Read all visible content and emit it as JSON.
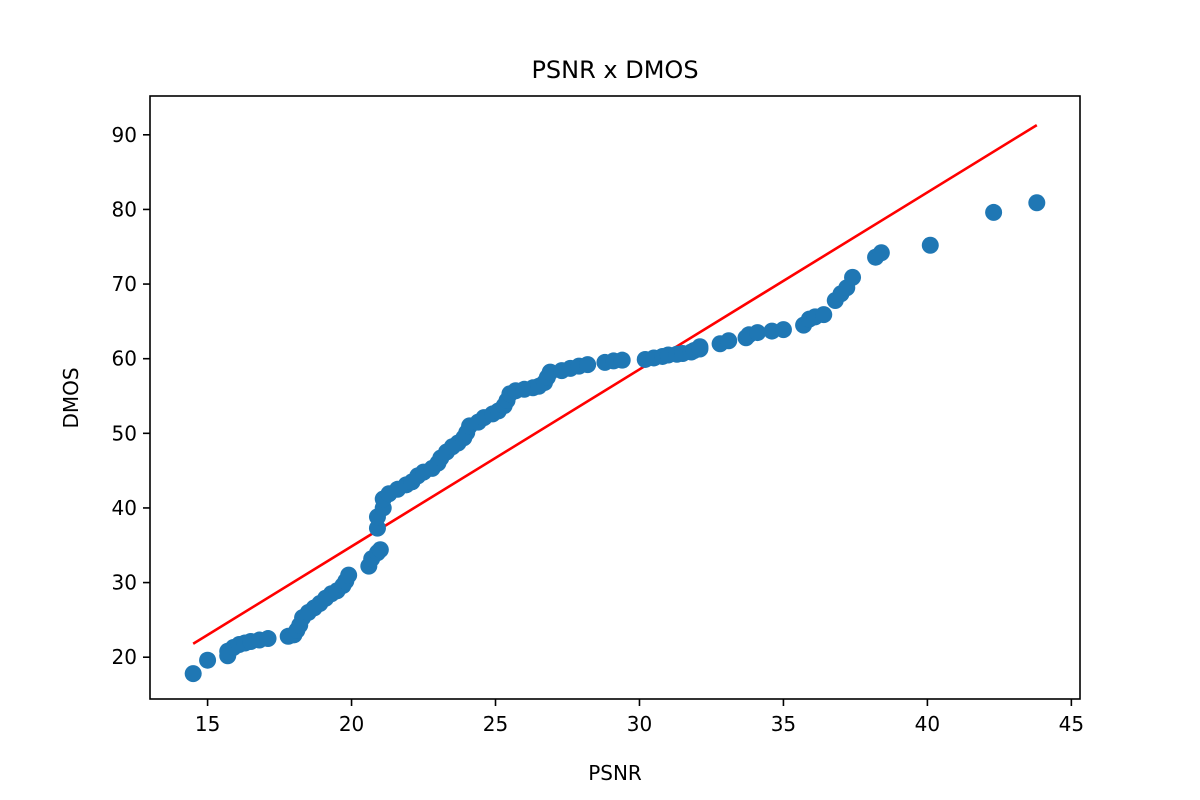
{
  "chart_data": {
    "type": "scatter",
    "title": "PSNR x DMOS",
    "xlabel": "PSNR",
    "ylabel": "DMOS",
    "xlim": [
      13.0,
      45.3
    ],
    "ylim": [
      14.4,
      95.2
    ],
    "xticks": [
      15,
      20,
      25,
      30,
      35,
      40,
      45
    ],
    "yticks": [
      20,
      30,
      40,
      50,
      60,
      70,
      80,
      90
    ],
    "grid": false,
    "series": [
      {
        "kind": "scatter",
        "color": "#1f77b4",
        "points": [
          [
            14.5,
            17.8
          ],
          [
            15.0,
            19.6
          ],
          [
            15.7,
            20.2
          ],
          [
            15.7,
            20.8
          ],
          [
            15.9,
            21.3
          ],
          [
            16.1,
            21.7
          ],
          [
            16.3,
            21.9
          ],
          [
            16.5,
            22.1
          ],
          [
            16.8,
            22.3
          ],
          [
            17.1,
            22.5
          ],
          [
            17.8,
            22.8
          ],
          [
            18.0,
            23.0
          ],
          [
            18.1,
            23.6
          ],
          [
            18.2,
            24.3
          ],
          [
            18.3,
            25.3
          ],
          [
            18.5,
            26.0
          ],
          [
            18.7,
            26.6
          ],
          [
            18.9,
            27.2
          ],
          [
            19.1,
            27.9
          ],
          [
            19.3,
            28.5
          ],
          [
            19.5,
            28.9
          ],
          [
            19.7,
            29.6
          ],
          [
            19.8,
            30.2
          ],
          [
            19.9,
            31.0
          ],
          [
            20.6,
            32.2
          ],
          [
            20.7,
            33.2
          ],
          [
            20.9,
            34.0
          ],
          [
            21.0,
            34.4
          ],
          [
            20.9,
            37.3
          ],
          [
            20.9,
            38.8
          ],
          [
            21.1,
            40.0
          ],
          [
            21.1,
            41.2
          ],
          [
            21.3,
            41.9
          ],
          [
            21.6,
            42.5
          ],
          [
            21.9,
            43.1
          ],
          [
            22.1,
            43.5
          ],
          [
            22.3,
            44.3
          ],
          [
            22.5,
            44.8
          ],
          [
            22.8,
            45.3
          ],
          [
            23.0,
            46.0
          ],
          [
            23.1,
            46.7
          ],
          [
            23.3,
            47.5
          ],
          [
            23.5,
            48.2
          ],
          [
            23.7,
            48.7
          ],
          [
            23.9,
            49.4
          ],
          [
            24.0,
            50.1
          ],
          [
            24.1,
            51.0
          ],
          [
            24.4,
            51.5
          ],
          [
            24.6,
            52.1
          ],
          [
            24.9,
            52.6
          ],
          [
            25.1,
            53.0
          ],
          [
            25.3,
            53.7
          ],
          [
            25.4,
            54.4
          ],
          [
            25.5,
            55.3
          ],
          [
            25.7,
            55.7
          ],
          [
            26.0,
            55.9
          ],
          [
            26.3,
            56.1
          ],
          [
            26.5,
            56.3
          ],
          [
            26.7,
            56.8
          ],
          [
            26.8,
            57.5
          ],
          [
            26.9,
            58.2
          ],
          [
            27.3,
            58.4
          ],
          [
            27.6,
            58.7
          ],
          [
            27.9,
            59.0
          ],
          [
            28.2,
            59.2
          ],
          [
            28.8,
            59.5
          ],
          [
            29.1,
            59.7
          ],
          [
            29.4,
            59.8
          ],
          [
            30.2,
            59.9
          ],
          [
            30.5,
            60.1
          ],
          [
            30.8,
            60.3
          ],
          [
            31.0,
            60.5
          ],
          [
            31.3,
            60.6
          ],
          [
            31.5,
            60.7
          ],
          [
            31.8,
            60.9
          ],
          [
            31.9,
            61.1
          ],
          [
            32.1,
            61.3
          ],
          [
            32.1,
            61.6
          ],
          [
            32.8,
            62.0
          ],
          [
            33.1,
            62.4
          ],
          [
            33.7,
            62.8
          ],
          [
            33.8,
            63.2
          ],
          [
            34.1,
            63.5
          ],
          [
            34.6,
            63.7
          ],
          [
            35.0,
            63.9
          ],
          [
            35.7,
            64.5
          ],
          [
            35.9,
            65.3
          ],
          [
            36.1,
            65.6
          ],
          [
            36.4,
            65.9
          ],
          [
            36.8,
            67.8
          ],
          [
            37.0,
            68.7
          ],
          [
            37.2,
            69.5
          ],
          [
            37.4,
            70.9
          ],
          [
            38.2,
            73.6
          ],
          [
            38.4,
            74.2
          ],
          [
            40.1,
            75.2
          ],
          [
            42.3,
            79.6
          ],
          [
            43.8,
            80.9
          ]
        ]
      },
      {
        "kind": "line",
        "color": "#ff0000",
        "points": [
          [
            14.5,
            21.8
          ],
          [
            43.8,
            91.3
          ]
        ]
      }
    ]
  }
}
